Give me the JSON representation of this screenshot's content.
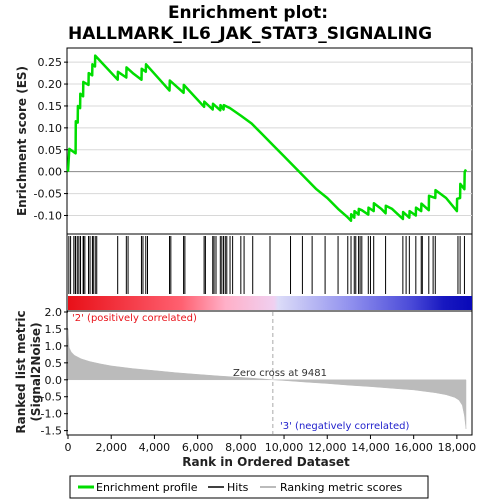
{
  "chart_data": {
    "type": "line",
    "title_line1": "Enrichment plot:",
    "title_line2": "HALLMARK_IL6_JAK_STAT3_SIGNALING",
    "xlabel": "Rank in Ordered Dataset",
    "xlim": [
      0,
      18700
    ],
    "xticks": [
      0,
      2000,
      4000,
      6000,
      8000,
      10000,
      12000,
      14000,
      16000,
      18000
    ],
    "xtick_labels": [
      "0",
      "2,000",
      "4,000",
      "6,000",
      "8,000",
      "10,000",
      "12,000",
      "14,000",
      "16,000",
      "18,000"
    ],
    "es_panel": {
      "ylabel": "Enrichment score (ES)",
      "ylim": [
        -0.14,
        0.28
      ],
      "yticks": [
        -0.1,
        -0.05,
        0.0,
        0.05,
        0.1,
        0.15,
        0.2,
        0.25
      ],
      "ytick_labels": [
        "-0.10",
        "-0.05",
        "0.00",
        "0.05",
        "0.10",
        "0.15",
        "0.20",
        "0.25"
      ],
      "series": [
        {
          "name": "Enrichment profile",
          "color": "#00dd00",
          "x": [
            0,
            60,
            350,
            360,
            450,
            460,
            560,
            570,
            700,
            710,
            950,
            960,
            1120,
            1130,
            1250,
            1260,
            2300,
            2310,
            2700,
            2710,
            3000,
            3400,
            3410,
            3600,
            3610,
            4700,
            4710,
            5350,
            5360,
            6300,
            6310,
            6700,
            6710,
            7050,
            7060,
            7200,
            7210,
            7500,
            8000,
            8500,
            9000,
            9500,
            10000,
            10500,
            11000,
            11500,
            12000,
            12500,
            12900,
            13100,
            13110,
            13250,
            13260,
            13450,
            13460,
            13600,
            13900,
            13910,
            14150,
            14160,
            14500,
            14700,
            14710,
            15000,
            15500,
            15510,
            15800,
            15810,
            16100,
            16110,
            16350,
            16360,
            16700,
            16710,
            17000,
            17010,
            17500,
            18000,
            18010,
            18150,
            18160,
            18350,
            18360,
            18420
          ],
          "y": [
            0.0,
            0.052,
            0.042,
            0.115,
            0.112,
            0.15,
            0.145,
            0.178,
            0.172,
            0.205,
            0.198,
            0.225,
            0.22,
            0.245,
            0.24,
            0.265,
            0.21,
            0.228,
            0.215,
            0.238,
            0.225,
            0.21,
            0.235,
            0.228,
            0.245,
            0.185,
            0.208,
            0.18,
            0.198,
            0.148,
            0.16,
            0.142,
            0.155,
            0.14,
            0.152,
            0.142,
            0.152,
            0.145,
            0.128,
            0.11,
            0.085,
            0.06,
            0.035,
            0.01,
            -0.015,
            -0.04,
            -0.06,
            -0.085,
            -0.102,
            -0.112,
            -0.097,
            -0.105,
            -0.09,
            -0.098,
            -0.085,
            -0.088,
            -0.098,
            -0.082,
            -0.09,
            -0.072,
            -0.085,
            -0.095,
            -0.078,
            -0.085,
            -0.108,
            -0.092,
            -0.105,
            -0.09,
            -0.1,
            -0.082,
            -0.09,
            -0.073,
            -0.088,
            -0.055,
            -0.06,
            -0.042,
            -0.06,
            -0.09,
            -0.062,
            -0.06,
            -0.028,
            -0.04,
            0.0,
            0.005
          ]
        }
      ]
    },
    "hits_panel": {
      "name": "Hits",
      "color": "#000000",
      "positions": [
        40,
        120,
        270,
        340,
        360,
        450,
        470,
        560,
        580,
        700,
        720,
        780,
        950,
        1020,
        1130,
        1170,
        1260,
        1330,
        2300,
        2700,
        2780,
        3400,
        3470,
        3600,
        3680,
        4700,
        4760,
        5350,
        5410,
        6300,
        6360,
        6700,
        6760,
        6850,
        7050,
        7120,
        7200,
        7280,
        7350,
        7500,
        7620,
        8000,
        8150,
        8550,
        9350,
        10300,
        10850,
        11300,
        11900,
        12500,
        12950,
        13100,
        13250,
        13320,
        13450,
        13520,
        13600,
        13900,
        14000,
        14150,
        14700,
        15500,
        15650,
        15800,
        16100,
        16350,
        16400,
        16700,
        16900,
        17000,
        18050,
        18150,
        18350
      ]
    },
    "metric_panel": {
      "ylabel_line1": "Ranked list metric",
      "ylabel_line2": "(Signal2Noise)",
      "ylim": [
        -1.6,
        2.0
      ],
      "yticks": [
        -1.5,
        -1.0,
        -0.5,
        0.0,
        0.5,
        1.0,
        1.5,
        2.0
      ],
      "ytick_labels": [
        "-1.5",
        "-1.0",
        "-0.5",
        "0.0",
        "0.5",
        "1.0",
        "1.5",
        "2.0"
      ],
      "series": [
        {
          "name": "Ranking metric scores",
          "color": "#bbbbbb",
          "x": [
            0,
            50,
            150,
            300,
            600,
            1000,
            1500,
            2000,
            3000,
            4000,
            5000,
            6000,
            7000,
            8000,
            9000,
            9481,
            10000,
            11000,
            12000,
            13000,
            14000,
            15000,
            16000,
            17000,
            17500,
            17900,
            18100,
            18250,
            18350,
            18420
          ],
          "y": [
            1.5,
            0.95,
            0.82,
            0.72,
            0.62,
            0.54,
            0.47,
            0.41,
            0.33,
            0.27,
            0.21,
            0.16,
            0.11,
            0.07,
            0.025,
            0.0,
            -0.02,
            -0.07,
            -0.11,
            -0.16,
            -0.2,
            -0.25,
            -0.3,
            -0.38,
            -0.44,
            -0.52,
            -0.6,
            -0.75,
            -1.05,
            -1.45
          ]
        }
      ],
      "zero_cross_label": "Zero cross at 9481",
      "zero_cross_x": 9481,
      "positive_label": "'2' (positively correlated)",
      "negative_label": "'3' (negatively correlated)",
      "positive_color": "#e8131a",
      "negative_color": "#2222cc"
    },
    "legend": {
      "placement": "bottom",
      "entries": [
        {
          "label": "Enrichment profile",
          "color": "#00dd00"
        },
        {
          "label": "Hits",
          "color": "#000000"
        },
        {
          "label": "Ranking metric scores",
          "color": "#bbbbbb"
        }
      ]
    }
  }
}
